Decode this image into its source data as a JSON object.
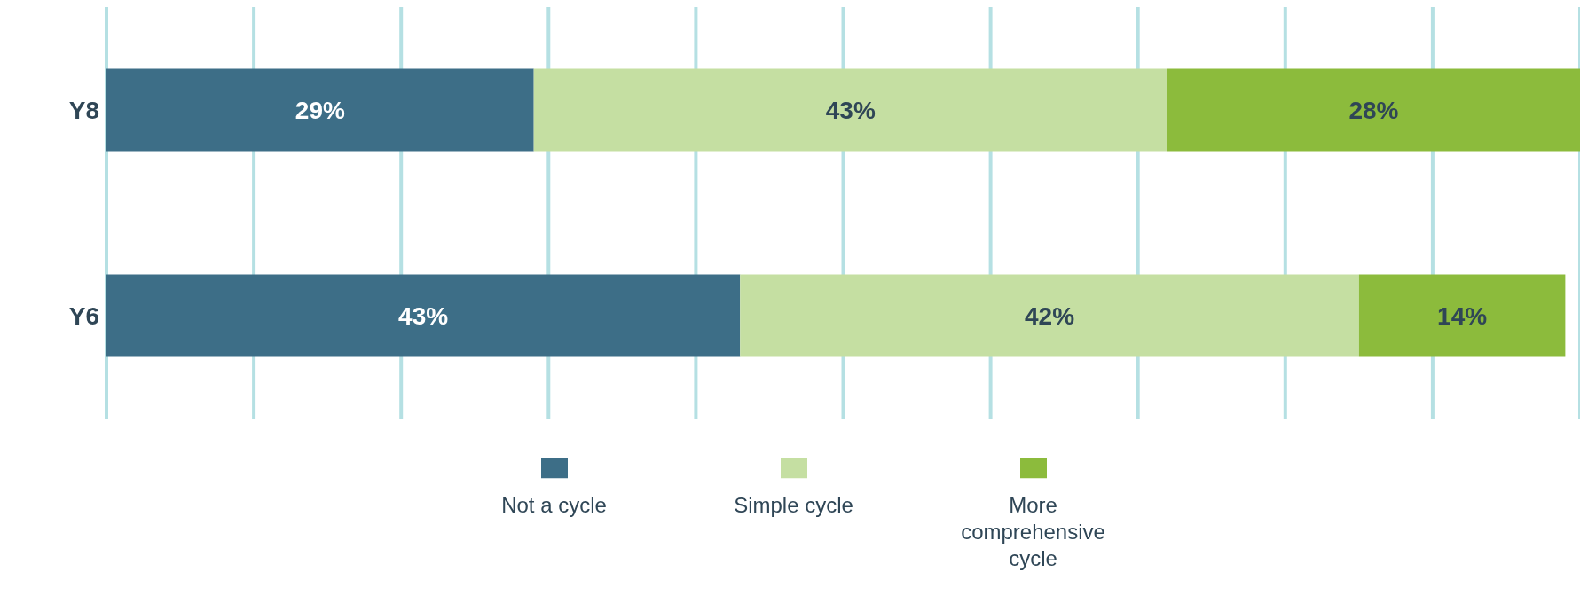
{
  "chart_data": {
    "type": "bar",
    "orientation": "horizontal",
    "stacked": true,
    "categories": [
      "Y8",
      "Y6"
    ],
    "series": [
      {
        "name": "Not a cycle",
        "color": "#3d6e87",
        "values": [
          29,
          43
        ],
        "value_labels": [
          "29%",
          "43%"
        ]
      },
      {
        "name": "Simple cycle",
        "color": "#c5dfa2",
        "values": [
          43,
          42
        ],
        "value_labels": [
          "43%",
          "42%"
        ]
      },
      {
        "name": "More comprehensive cycle",
        "color": "#8cbb3c",
        "values": [
          28,
          14
        ],
        "value_labels": [
          "28%",
          "14%"
        ]
      }
    ],
    "xlim": [
      0,
      100
    ],
    "xticks": [
      {
        "value": 0,
        "label": null
      },
      {
        "value": 10,
        "label": null
      },
      {
        "value": 20,
        "label": null
      },
      {
        "value": 30,
        "label": null
      },
      {
        "value": 40,
        "label": null
      },
      {
        "value": 50,
        "label": null
      },
      {
        "value": 60,
        "label": null
      },
      {
        "value": 70,
        "label": null
      },
      {
        "value": 80,
        "label": null
      },
      {
        "value": 90,
        "label": null
      },
      {
        "value": 100,
        "label": null
      }
    ],
    "grid": "x",
    "tick_labels": "y",
    "legend": "bottom"
  }
}
